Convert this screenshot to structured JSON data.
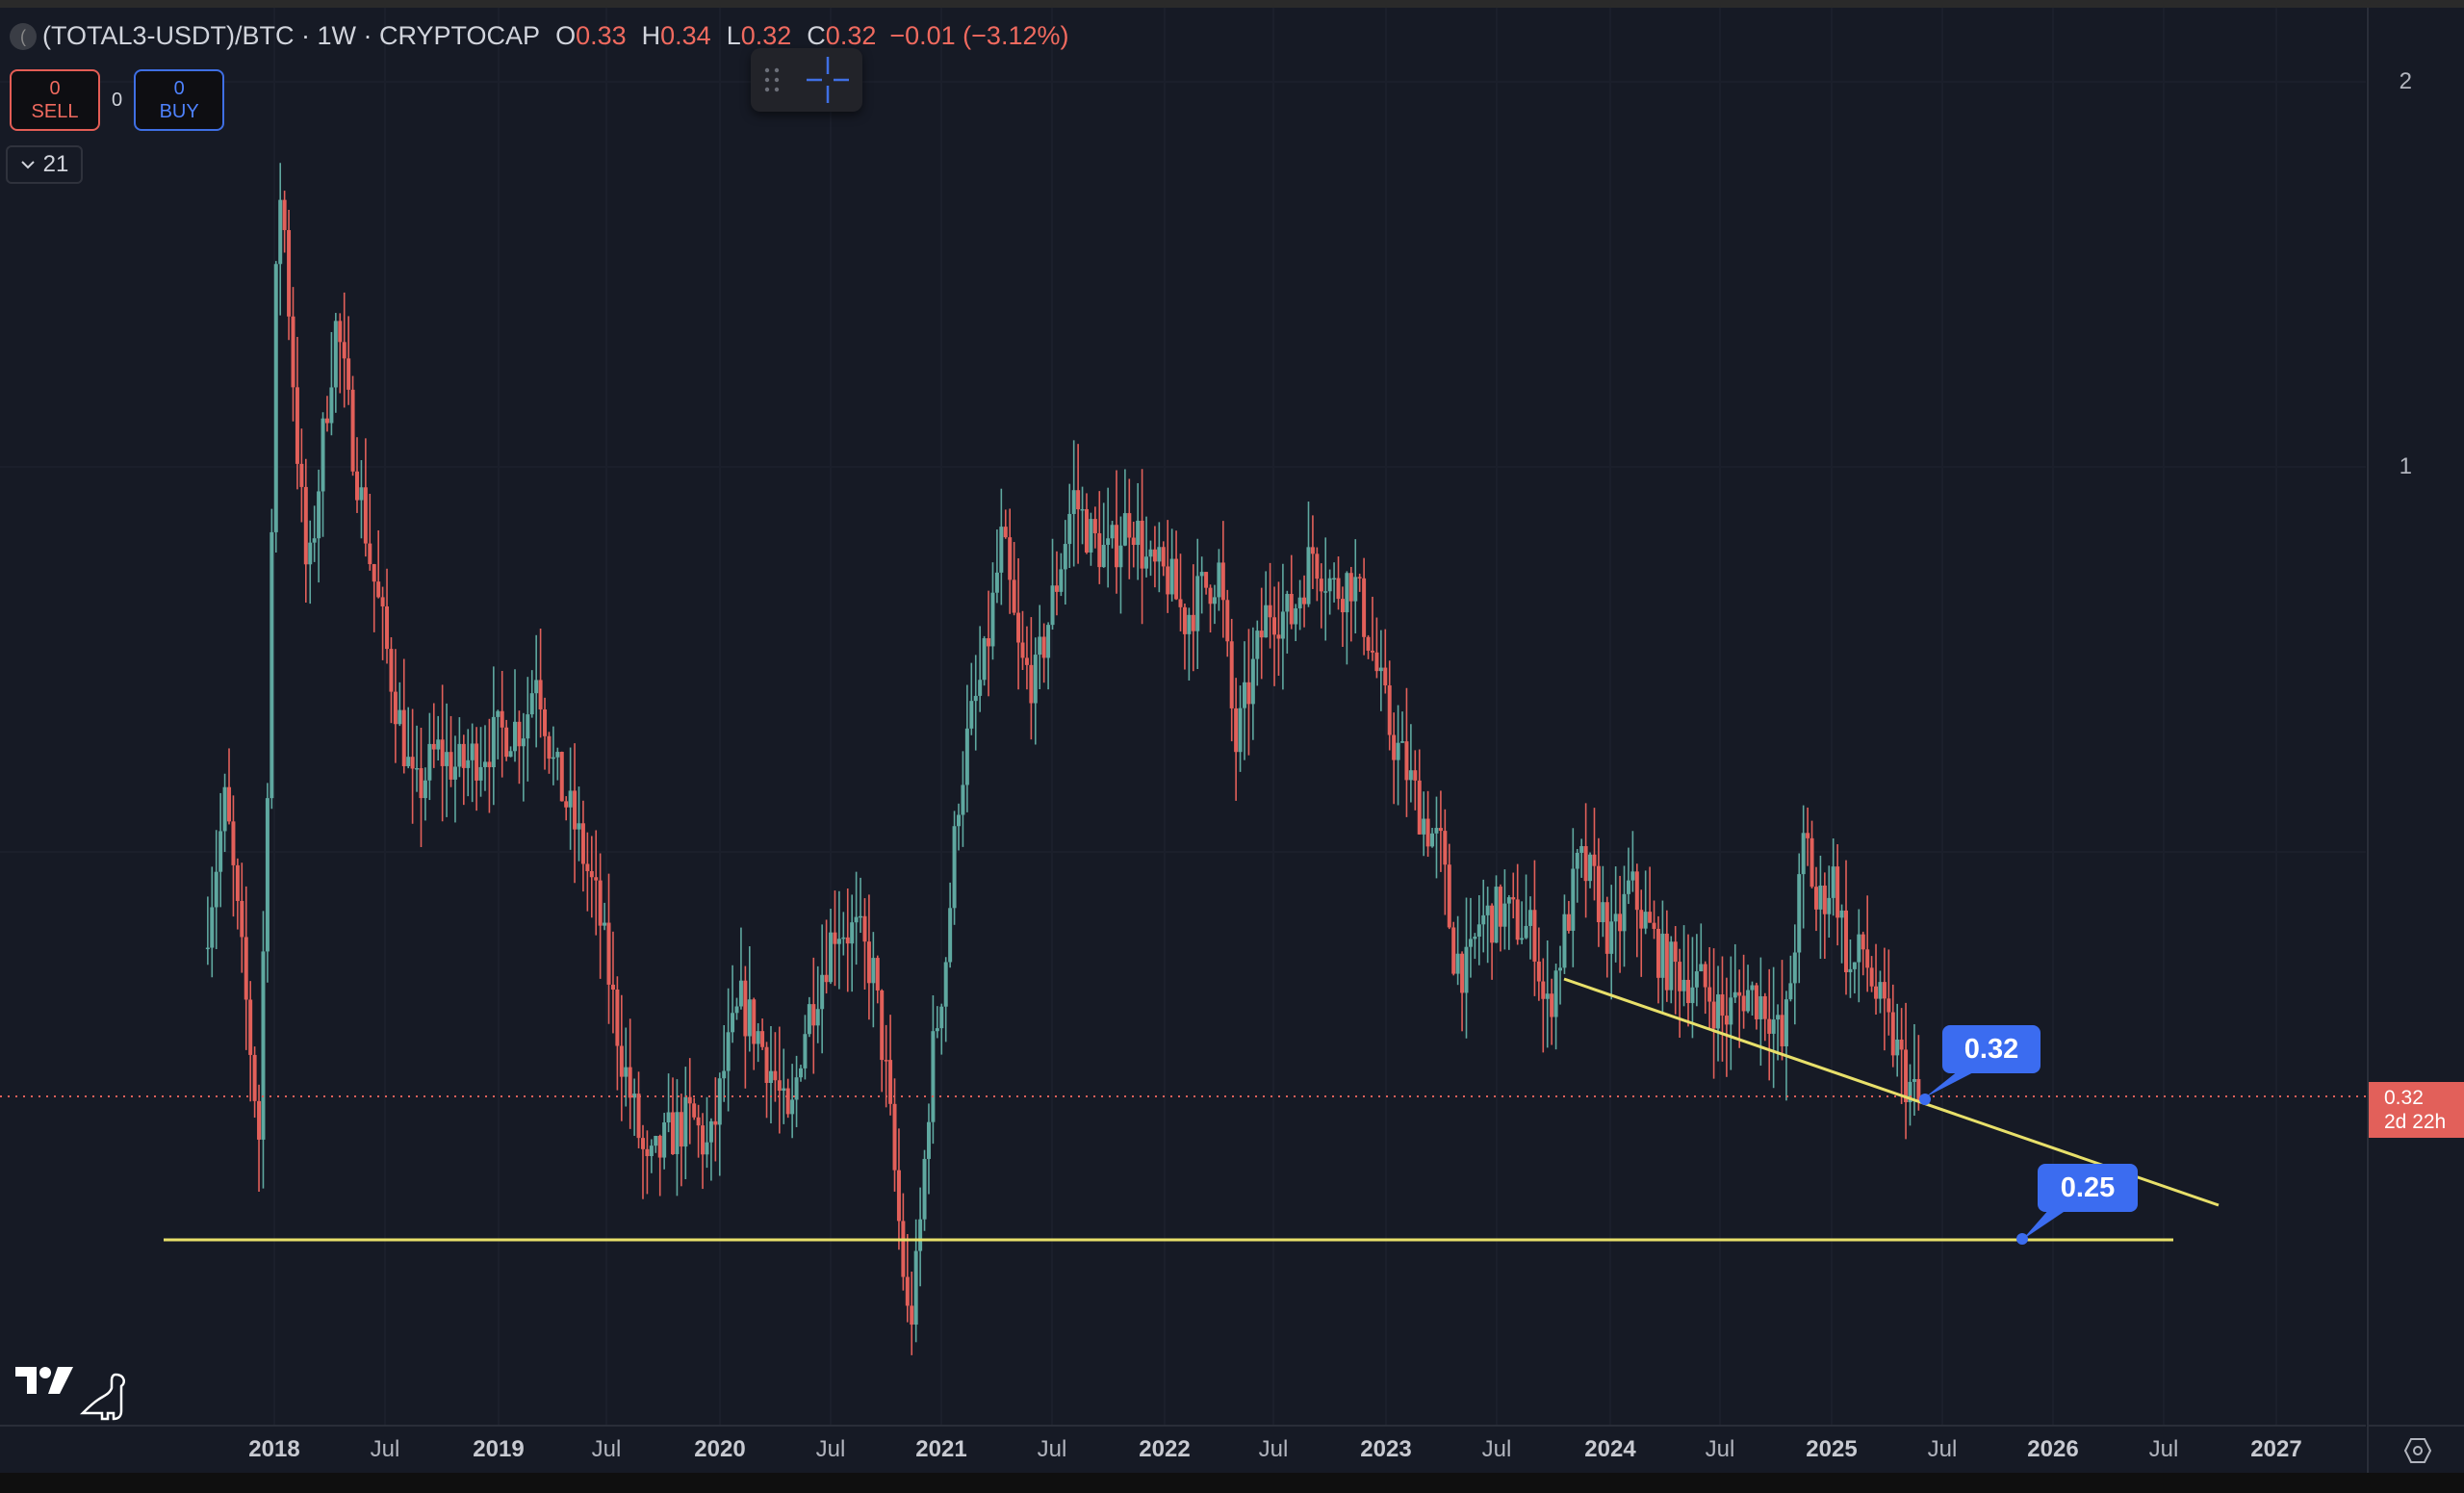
{
  "header": {
    "symbol": "(TOTAL3-USDT)/BTC",
    "interval": "1W",
    "exchange": "CRYPTOCAP",
    "ohlc": {
      "o_label": "O",
      "o_value": "0.33",
      "h_label": "H",
      "h_value": "0.34",
      "l_label": "L",
      "l_value": "0.32",
      "c_label": "C",
      "c_value": "0.32",
      "change": "−0.01 (−3.12%)"
    },
    "title_line": "(TOTAL3-USDT)/BTC · 1W · CRYPTOCAP"
  },
  "trade": {
    "sell_count": "0",
    "sell_label": "SELL",
    "spread": "0",
    "buy_count": "0",
    "buy_label": "BUY"
  },
  "indicators_toggle": {
    "count": "21",
    "icon": "chevron-down-icon"
  },
  "floating_toolbar": {
    "icons": [
      "drag-handle-icon",
      "crosshair-icon"
    ]
  },
  "price_axis": {
    "ticks": [
      {
        "label": "2",
        "y": 85
      },
      {
        "label": "1",
        "y": 485
      }
    ],
    "last_price": "0.32",
    "countdown": "2d 22h"
  },
  "time_axis": {
    "ticks": [
      {
        "label": "2018",
        "x": 285,
        "year": true
      },
      {
        "label": "Jul",
        "x": 400,
        "year": false
      },
      {
        "label": "2019",
        "x": 518,
        "year": true
      },
      {
        "label": "Jul",
        "x": 630,
        "year": false
      },
      {
        "label": "2020",
        "x": 748,
        "year": true
      },
      {
        "label": "Jul",
        "x": 863,
        "year": false
      },
      {
        "label": "2021",
        "x": 978,
        "year": true
      },
      {
        "label": "Jul",
        "x": 1093,
        "year": false
      },
      {
        "label": "2022",
        "x": 1210,
        "year": true
      },
      {
        "label": "Jul",
        "x": 1323,
        "year": false
      },
      {
        "label": "2023",
        "x": 1440,
        "year": true
      },
      {
        "label": "Jul",
        "x": 1555,
        "year": false
      },
      {
        "label": "2024",
        "x": 1673,
        "year": true
      },
      {
        "label": "Jul",
        "x": 1787,
        "year": false
      },
      {
        "label": "2025",
        "x": 1903,
        "year": true
      },
      {
        "label": "Jul",
        "x": 2018,
        "year": false
      },
      {
        "label": "2026",
        "x": 2133,
        "year": true
      },
      {
        "label": "Jul",
        "x": 2248,
        "year": false
      },
      {
        "label": "2027",
        "x": 2365,
        "year": true
      }
    ]
  },
  "annotations": [
    {
      "label": "0.32",
      "type": "price-callout"
    },
    {
      "label": "0.25",
      "type": "price-callout"
    }
  ],
  "colors": {
    "up": "#5fa8a0",
    "down": "#e2605a",
    "trendline": "#e8e06a",
    "callout": "#3b6cf0",
    "last_price": "#e2605a",
    "background": "#161a25"
  },
  "chart_data": {
    "type": "candlestick",
    "title": "(TOTAL3-USDT)/BTC · 1W · CRYPTOCAP",
    "scale": "log",
    "xlabel": "",
    "ylabel": "",
    "yticks": [
      1,
      2
    ],
    "ylim": [
      0.18,
      2.3
    ],
    "xlim": [
      "2017-09",
      "2027-06"
    ],
    "x_ticks": [
      "2018",
      "Jul",
      "2019",
      "Jul",
      "2020",
      "Jul",
      "2021",
      "Jul",
      "2022",
      "Jul",
      "2023",
      "Jul",
      "2024",
      "Jul",
      "2025",
      "Jul",
      "2026",
      "Jul",
      "2027"
    ],
    "last": {
      "open": 0.33,
      "high": 0.34,
      "low": 0.32,
      "close": 0.32,
      "change": -0.01,
      "change_pct": -3.12
    },
    "approx_closes_by_quarter": {
      "x": [
        "2017-Q4",
        "2018-Q1",
        "2018-Q2",
        "2018-Q3",
        "2018-Q4",
        "2019-Q1",
        "2019-Q2",
        "2019-Q3",
        "2019-Q4",
        "2020-Q1",
        "2020-Q2",
        "2020-Q3",
        "2020-Q4",
        "2021-Q1",
        "2021-Q2",
        "2021-Q3",
        "2021-Q4",
        "2022-Q1",
        "2022-Q2",
        "2022-Q3",
        "2022-Q4",
        "2023-Q1",
        "2023-Q2",
        "2023-Q3",
        "2023-Q4",
        "2024-Q1",
        "2024-Q2",
        "2024-Q3",
        "2024-Q4",
        "2025-Q1",
        "2025-Q2"
      ],
      "values": [
        0.45,
        1.3,
        0.95,
        0.65,
        0.55,
        0.6,
        0.62,
        0.42,
        0.33,
        0.33,
        0.38,
        0.45,
        0.3,
        0.55,
        0.85,
        0.8,
        0.92,
        0.78,
        0.82,
        0.8,
        0.75,
        0.6,
        0.45,
        0.43,
        0.46,
        0.45,
        0.42,
        0.38,
        0.47,
        0.4,
        0.32
      ]
    },
    "drawings": [
      {
        "type": "horizontal_line",
        "price": 0.25,
        "from": "2017-10",
        "to": "2026-03",
        "color": "#e8e06a"
      },
      {
        "type": "trendline",
        "from": {
          "date": "2023-09",
          "price": 0.37
        },
        "to": {
          "date": "2026-04",
          "price": 0.26
        },
        "color": "#e8e06a"
      },
      {
        "type": "price_callout",
        "label": "0.32",
        "anchor": "2025-05"
      },
      {
        "type": "price_callout",
        "label": "0.25",
        "anchor": "2025-12"
      }
    ]
  }
}
